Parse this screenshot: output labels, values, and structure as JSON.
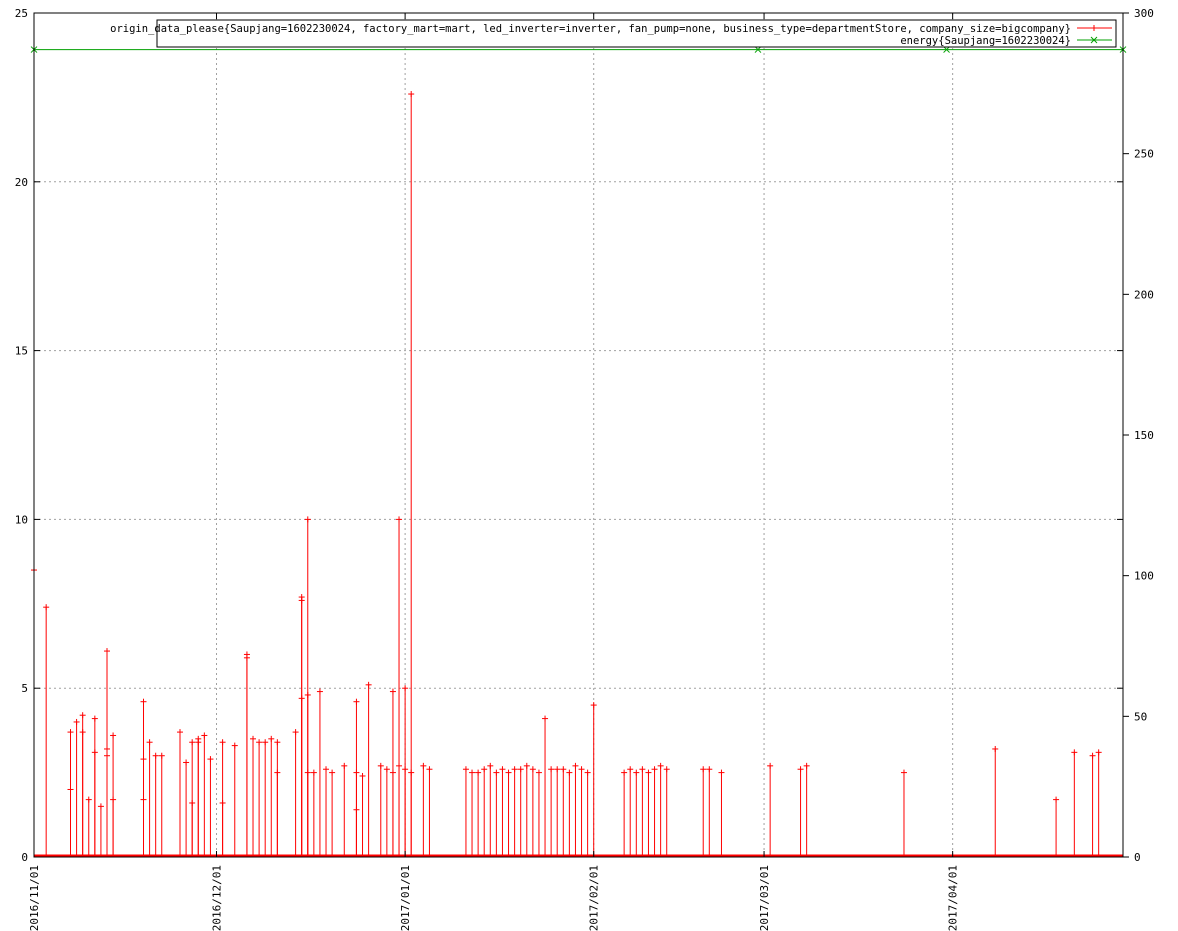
{
  "chart_data": {
    "type": "line",
    "title": "",
    "xlabel": "",
    "ylabel": "",
    "grid": true,
    "legend_position": "top-right",
    "x_axis": {
      "type": "date",
      "min": "2016-11-01",
      "max": "2017-04-29",
      "ticks": [
        "2016/11/01",
        "2016/12/01",
        "2017/01/01",
        "2017/02/01",
        "2017/03/01",
        "2017/04/01"
      ],
      "tick_dates": [
        "2016-11-01",
        "2016-12-01",
        "2017-01-01",
        "2017-02-01",
        "2017-03-01",
        "2017-04-01"
      ]
    },
    "y_axis_left": {
      "min": 0,
      "max": 25,
      "ticks": [
        0,
        5,
        10,
        15,
        20,
        25
      ]
    },
    "y_axis_right": {
      "min": 0,
      "max": 300,
      "ticks": [
        0,
        50,
        100,
        150,
        200,
        250,
        300
      ]
    },
    "series": [
      {
        "name": "origin_data_please{Saupjang=1602230024, factory_mart=mart, led_inverter=inverter, fan_pump=none, business_type=departmentStore, company_size=bigcompany}",
        "color": "#ff0000",
        "marker": "+",
        "style": "impulses",
        "axis": "left",
        "points": [
          [
            "2016-11-01",
            8.5
          ],
          [
            "2016-11-03",
            7.4
          ],
          [
            "2016-11-07",
            3.7
          ],
          [
            "2016-11-07",
            2.0
          ],
          [
            "2016-11-08",
            4.0
          ],
          [
            "2016-11-09",
            3.7
          ],
          [
            "2016-11-09",
            4.2
          ],
          [
            "2016-11-10",
            1.7
          ],
          [
            "2016-11-11",
            4.1
          ],
          [
            "2016-11-11",
            3.1
          ],
          [
            "2016-11-12",
            1.5
          ],
          [
            "2016-11-13",
            3.0
          ],
          [
            "2016-11-13",
            6.1
          ],
          [
            "2016-11-13",
            3.2
          ],
          [
            "2016-11-14",
            3.6
          ],
          [
            "2016-11-14",
            1.7
          ],
          [
            "2016-11-19",
            2.9
          ],
          [
            "2016-11-19",
            4.6
          ],
          [
            "2016-11-19",
            1.7
          ],
          [
            "2016-11-20",
            3.4
          ],
          [
            "2016-11-21",
            3.0
          ],
          [
            "2016-11-22",
            3.0
          ],
          [
            "2016-11-25",
            3.7
          ],
          [
            "2016-11-26",
            2.8
          ],
          [
            "2016-11-27",
            3.4
          ],
          [
            "2016-11-27",
            1.6
          ],
          [
            "2016-11-28",
            3.5
          ],
          [
            "2016-11-28",
            3.4
          ],
          [
            "2016-11-29",
            3.6
          ],
          [
            "2016-11-30",
            2.9
          ],
          [
            "2016-12-02",
            3.4
          ],
          [
            "2016-12-02",
            1.6
          ],
          [
            "2016-12-04",
            3.3
          ],
          [
            "2016-12-06",
            6.0
          ],
          [
            "2016-12-06",
            5.9
          ],
          [
            "2016-12-07",
            3.5
          ],
          [
            "2016-12-08",
            3.4
          ],
          [
            "2016-12-09",
            3.4
          ],
          [
            "2016-12-10",
            3.5
          ],
          [
            "2016-12-11",
            3.4
          ],
          [
            "2016-12-11",
            2.5
          ],
          [
            "2016-12-14",
            3.7
          ],
          [
            "2016-12-15",
            7.7
          ],
          [
            "2016-12-15",
            7.6
          ],
          [
            "2016-12-15",
            4.7
          ],
          [
            "2016-12-16",
            10.0
          ],
          [
            "2016-12-16",
            4.8
          ],
          [
            "2016-12-16",
            2.5
          ],
          [
            "2016-12-17",
            2.5
          ],
          [
            "2016-12-18",
            4.9
          ],
          [
            "2016-12-19",
            2.6
          ],
          [
            "2016-12-20",
            2.5
          ],
          [
            "2016-12-22",
            2.7
          ],
          [
            "2016-12-24",
            4.6
          ],
          [
            "2016-12-24",
            2.5
          ],
          [
            "2016-12-24",
            1.4
          ],
          [
            "2016-12-25",
            2.4
          ],
          [
            "2016-12-26",
            5.1
          ],
          [
            "2016-12-28",
            2.7
          ],
          [
            "2016-12-29",
            2.6
          ],
          [
            "2016-12-30",
            4.9
          ],
          [
            "2016-12-30",
            2.5
          ],
          [
            "2016-12-31",
            10.0
          ],
          [
            "2016-12-31",
            2.7
          ],
          [
            "2017-01-01",
            2.6
          ],
          [
            "2017-01-01",
            5.0
          ],
          [
            "2017-01-02",
            2.5
          ],
          [
            "2017-01-02",
            22.6
          ],
          [
            "2017-01-04",
            2.7
          ],
          [
            "2017-01-05",
            2.6
          ],
          [
            "2017-01-11",
            2.6
          ],
          [
            "2017-01-12",
            2.5
          ],
          [
            "2017-01-13",
            2.5
          ],
          [
            "2017-01-14",
            2.6
          ],
          [
            "2017-01-15",
            2.7
          ],
          [
            "2017-01-16",
            2.5
          ],
          [
            "2017-01-17",
            2.6
          ],
          [
            "2017-01-18",
            2.5
          ],
          [
            "2017-01-19",
            2.6
          ],
          [
            "2017-01-20",
            2.6
          ],
          [
            "2017-01-21",
            2.7
          ],
          [
            "2017-01-22",
            2.6
          ],
          [
            "2017-01-23",
            2.5
          ],
          [
            "2017-01-24",
            4.1
          ],
          [
            "2017-01-25",
            2.6
          ],
          [
            "2017-01-26",
            2.6
          ],
          [
            "2017-01-27",
            2.6
          ],
          [
            "2017-01-28",
            2.5
          ],
          [
            "2017-01-29",
            2.7
          ],
          [
            "2017-01-30",
            2.6
          ],
          [
            "2017-01-31",
            2.5
          ],
          [
            "2017-02-01",
            4.5
          ],
          [
            "2017-02-06",
            2.5
          ],
          [
            "2017-02-07",
            2.6
          ],
          [
            "2017-02-08",
            2.5
          ],
          [
            "2017-02-09",
            2.6
          ],
          [
            "2017-02-10",
            2.5
          ],
          [
            "2017-02-11",
            2.6
          ],
          [
            "2017-02-12",
            2.7
          ],
          [
            "2017-02-13",
            2.6
          ],
          [
            "2017-02-19",
            2.6
          ],
          [
            "2017-02-20",
            2.6
          ],
          [
            "2017-02-22",
            2.5
          ],
          [
            "2017-03-02",
            2.7
          ],
          [
            "2017-03-07",
            2.6
          ],
          [
            "2017-03-08",
            2.7
          ],
          [
            "2017-03-24",
            2.5
          ],
          [
            "2017-04-08",
            3.2
          ],
          [
            "2017-04-18",
            1.7
          ],
          [
            "2017-04-21",
            3.1
          ],
          [
            "2017-04-24",
            3.0
          ],
          [
            "2017-04-25",
            3.1
          ]
        ]
      },
      {
        "name": "energy{Saupjang=1602230024}",
        "color": "#00a000",
        "marker": "x",
        "style": "linespoints",
        "axis": "right",
        "points": [
          [
            "2016-11-01",
            287
          ],
          [
            "2017-02-28",
            287
          ],
          [
            "2017-03-31",
            287
          ],
          [
            "2017-04-29",
            287
          ]
        ]
      }
    ]
  }
}
